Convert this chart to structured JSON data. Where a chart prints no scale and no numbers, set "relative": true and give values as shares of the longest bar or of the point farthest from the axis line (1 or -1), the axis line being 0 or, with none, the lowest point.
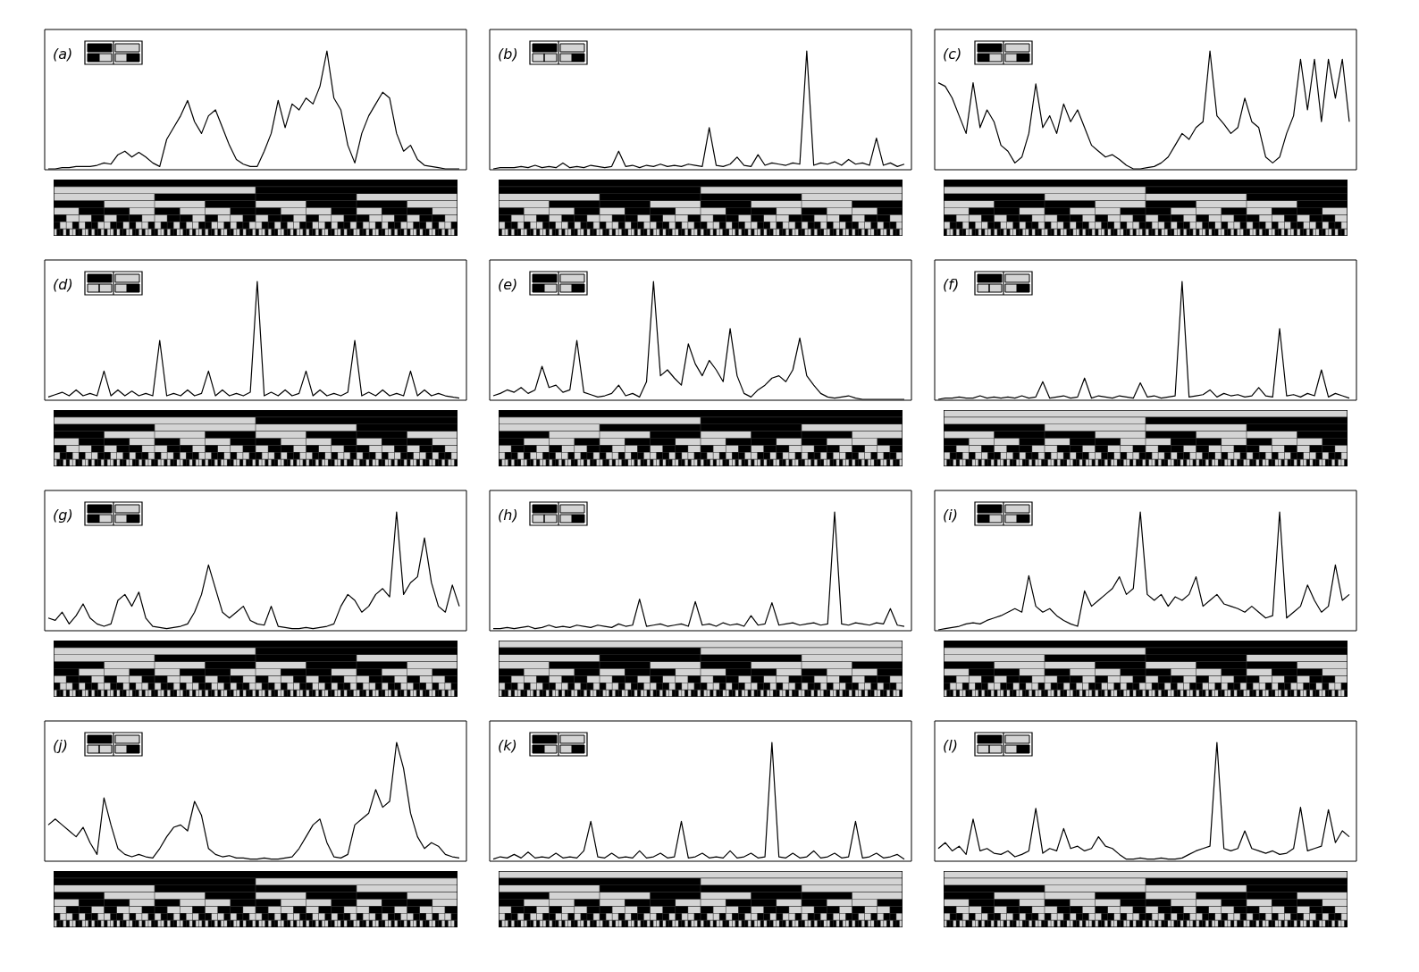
{
  "chart_data": [
    {
      "type": "line",
      "title": "(a)",
      "relative": true,
      "color": "#000000",
      "categories": [
        null,
        null,
        null,
        null,
        null,
        null,
        null,
        null,
        null,
        null,
        null,
        null,
        null,
        null,
        null,
        null,
        null,
        null,
        null,
        null,
        null,
        null,
        null,
        null,
        null,
        null,
        null,
        null,
        null,
        null,
        null,
        null,
        null,
        null,
        null,
        null,
        null,
        null,
        null,
        null,
        null,
        null,
        null,
        null,
        null,
        null,
        null,
        null,
        null,
        null,
        null,
        null,
        null,
        null,
        null,
        null,
        null,
        null,
        null,
        null
      ],
      "values": [
        0,
        0,
        0.01,
        0.01,
        0.02,
        0.02,
        0.02,
        0.03,
        0.05,
        0.04,
        0.12,
        0.15,
        0.1,
        0.14,
        0.1,
        0.05,
        0.02,
        0.25,
        0.35,
        0.45,
        0.58,
        0.4,
        0.3,
        0.45,
        0.5,
        0.35,
        0.2,
        0.08,
        0.04,
        0.02,
        0.02,
        0.15,
        0.3,
        0.58,
        0.35,
        0.55,
        0.5,
        0.6,
        0.55,
        0.7,
        1,
        0.6,
        0.5,
        0.2,
        0.05,
        0.3,
        0.45,
        0.55,
        0.65,
        0.6,
        0.3,
        0.15,
        0.2,
        0.08,
        0.03,
        0.02,
        0.01,
        0,
        0,
        0
      ]
    },
    {
      "type": "line",
      "title": "(b)",
      "relative": true,
      "color": "#000000",
      "categories": [
        null,
        null,
        null,
        null,
        null,
        null,
        null,
        null,
        null,
        null,
        null,
        null,
        null,
        null,
        null,
        null,
        null,
        null,
        null,
        null,
        null,
        null,
        null,
        null,
        null,
        null,
        null,
        null,
        null,
        null,
        null,
        null,
        null,
        null,
        null,
        null,
        null,
        null,
        null,
        null,
        null,
        null,
        null,
        null,
        null,
        null,
        null,
        null,
        null,
        null,
        null,
        null,
        null,
        null,
        null,
        null,
        null,
        null,
        null,
        null
      ],
      "values": [
        0,
        0.01,
        0.01,
        0.01,
        0.02,
        0.01,
        0.03,
        0.01,
        0.02,
        0.01,
        0.05,
        0.01,
        0.02,
        0.01,
        0.03,
        0.02,
        0.01,
        0.02,
        0.15,
        0.02,
        0.03,
        0.01,
        0.03,
        0.02,
        0.04,
        0.02,
        0.03,
        0.02,
        0.04,
        0.03,
        0.02,
        0.35,
        0.03,
        0.02,
        0.04,
        0.1,
        0.03,
        0.02,
        0.12,
        0.03,
        0.05,
        0.04,
        0.03,
        0.05,
        0.04,
        1,
        0.03,
        0.05,
        0.04,
        0.06,
        0.03,
        0.08,
        0.04,
        0.05,
        0.03,
        0.26,
        0.03,
        0.05,
        0.02,
        0.04
      ]
    },
    {
      "type": "line",
      "title": "(c)",
      "relative": true,
      "color": "#000000",
      "categories": [
        null,
        null,
        null,
        null,
        null,
        null,
        null,
        null,
        null,
        null,
        null,
        null,
        null,
        null,
        null,
        null,
        null,
        null,
        null,
        null,
        null,
        null,
        null,
        null,
        null,
        null,
        null,
        null,
        null,
        null,
        null,
        null,
        null,
        null,
        null,
        null,
        null,
        null,
        null,
        null,
        null,
        null,
        null,
        null,
        null,
        null,
        null,
        null,
        null,
        null,
        null,
        null,
        null,
        null,
        null,
        null,
        null,
        null,
        null,
        null
      ],
      "values": [
        0.73,
        0.7,
        0.6,
        0.45,
        0.3,
        0.73,
        0.35,
        0.5,
        0.4,
        0.2,
        0.15,
        0.05,
        0.1,
        0.3,
        0.72,
        0.35,
        0.45,
        0.3,
        0.55,
        0.4,
        0.5,
        0.35,
        0.2,
        0.15,
        0.1,
        0.12,
        0.08,
        0.03,
        0,
        0,
        0.01,
        0.02,
        0.05,
        0.1,
        0.2,
        0.3,
        0.25,
        0.35,
        0.4,
        1,
        0.45,
        0.38,
        0.3,
        0.35,
        0.6,
        0.4,
        0.35,
        0.1,
        0.05,
        0.1,
        0.3,
        0.45,
        0.93,
        0.5,
        0.93,
        0.4,
        0.93,
        0.6,
        0.93,
        0.4
      ]
    },
    {
      "type": "line",
      "title": "(d)",
      "relative": true,
      "color": "#000000",
      "categories": [
        null,
        null,
        null,
        null,
        null,
        null,
        null,
        null,
        null,
        null,
        null,
        null,
        null,
        null,
        null,
        null,
        null,
        null,
        null,
        null,
        null,
        null,
        null,
        null,
        null,
        null,
        null,
        null,
        null,
        null,
        null,
        null,
        null,
        null,
        null,
        null,
        null,
        null,
        null,
        null,
        null,
        null,
        null,
        null,
        null,
        null,
        null,
        null,
        null,
        null,
        null,
        null,
        null,
        null,
        null,
        null,
        null,
        null,
        null,
        null
      ],
      "values": [
        0.02,
        0.04,
        0.06,
        0.03,
        0.08,
        0.03,
        0.05,
        0.03,
        0.24,
        0.03,
        0.08,
        0.03,
        0.07,
        0.03,
        0.05,
        0.03,
        0.5,
        0.03,
        0.05,
        0.03,
        0.08,
        0.03,
        0.05,
        0.24,
        0.03,
        0.08,
        0.03,
        0.05,
        0.03,
        0.06,
        1,
        0.03,
        0.06,
        0.03,
        0.08,
        0.03,
        0.05,
        0.24,
        0.03,
        0.08,
        0.03,
        0.05,
        0.03,
        0.06,
        0.5,
        0.03,
        0.06,
        0.03,
        0.08,
        0.03,
        0.05,
        0.03,
        0.24,
        0.03,
        0.08,
        0.03,
        0.05,
        0.03,
        0.02,
        0.01
      ]
    },
    {
      "type": "line",
      "title": "(e)",
      "relative": true,
      "color": "#000000",
      "categories": [
        null,
        null,
        null,
        null,
        null,
        null,
        null,
        null,
        null,
        null,
        null,
        null,
        null,
        null,
        null,
        null,
        null,
        null,
        null,
        null,
        null,
        null,
        null,
        null,
        null,
        null,
        null,
        null,
        null,
        null,
        null,
        null,
        null,
        null,
        null,
        null,
        null,
        null,
        null,
        null,
        null,
        null,
        null,
        null,
        null,
        null,
        null,
        null,
        null,
        null,
        null,
        null,
        null,
        null,
        null,
        null,
        null,
        null,
        null,
        null
      ],
      "values": [
        0.03,
        0.05,
        0.08,
        0.06,
        0.1,
        0.05,
        0.08,
        0.28,
        0.1,
        0.12,
        0.06,
        0.08,
        0.5,
        0.06,
        0.04,
        0.02,
        0.03,
        0.05,
        0.12,
        0.03,
        0.05,
        0.02,
        0.15,
        1,
        0.2,
        0.25,
        0.18,
        0.12,
        0.47,
        0.3,
        0.2,
        0.33,
        0.25,
        0.15,
        0.6,
        0.2,
        0.05,
        0.02,
        0.08,
        0.12,
        0.18,
        0.2,
        0.15,
        0.25,
        0.52,
        0.2,
        0.12,
        0.05,
        0.02,
        0.01,
        0.02,
        0.03,
        0.01,
        0,
        0,
        0,
        0,
        0,
        0,
        0
      ]
    },
    {
      "type": "line",
      "title": "(f)",
      "relative": true,
      "color": "#000000",
      "categories": [
        null,
        null,
        null,
        null,
        null,
        null,
        null,
        null,
        null,
        null,
        null,
        null,
        null,
        null,
        null,
        null,
        null,
        null,
        null,
        null,
        null,
        null,
        null,
        null,
        null,
        null,
        null,
        null,
        null,
        null,
        null,
        null,
        null,
        null,
        null,
        null,
        null,
        null,
        null,
        null,
        null,
        null,
        null,
        null,
        null,
        null,
        null,
        null,
        null,
        null,
        null,
        null,
        null,
        null,
        null,
        null,
        null,
        null,
        null,
        null
      ],
      "values": [
        0,
        0.01,
        0.01,
        0.02,
        0.01,
        0.01,
        0.03,
        0.01,
        0.02,
        0.01,
        0.02,
        0.01,
        0.03,
        0.01,
        0.02,
        0.15,
        0.01,
        0.02,
        0.03,
        0.01,
        0.02,
        0.18,
        0.01,
        0.03,
        0.02,
        0.01,
        0.03,
        0.02,
        0.01,
        0.14,
        0.02,
        0.03,
        0.01,
        0.02,
        0.03,
        1,
        0.02,
        0.03,
        0.04,
        0.08,
        0.02,
        0.05,
        0.03,
        0.04,
        0.02,
        0.03,
        0.1,
        0.03,
        0.02,
        0.6,
        0.03,
        0.04,
        0.02,
        0.05,
        0.03,
        0.25,
        0.02,
        0.05,
        0.03,
        0.01
      ]
    },
    {
      "type": "line",
      "title": "(g)",
      "relative": true,
      "color": "#000000",
      "categories": [
        null,
        null,
        null,
        null,
        null,
        null,
        null,
        null,
        null,
        null,
        null,
        null,
        null,
        null,
        null,
        null,
        null,
        null,
        null,
        null,
        null,
        null,
        null,
        null,
        null,
        null,
        null,
        null,
        null,
        null,
        null,
        null,
        null,
        null,
        null,
        null,
        null,
        null,
        null,
        null,
        null,
        null,
        null,
        null,
        null,
        null,
        null,
        null,
        null,
        null,
        null,
        null,
        null,
        null,
        null,
        null,
        null,
        null,
        null,
        null
      ],
      "values": [
        0.1,
        0.08,
        0.15,
        0.05,
        0.12,
        0.22,
        0.1,
        0.05,
        0.03,
        0.05,
        0.25,
        0.3,
        0.2,
        0.32,
        0.1,
        0.03,
        0.02,
        0.01,
        0.02,
        0.03,
        0.05,
        0.15,
        0.3,
        0.55,
        0.35,
        0.15,
        0.1,
        0.15,
        0.2,
        0.08,
        0.05,
        0.04,
        0.2,
        0.03,
        0.02,
        0.01,
        0.01,
        0.02,
        0.01,
        0.02,
        0.03,
        0.05,
        0.2,
        0.3,
        0.25,
        0.15,
        0.2,
        0.3,
        0.35,
        0.28,
        1,
        0.3,
        0.4,
        0.45,
        0.78,
        0.4,
        0.2,
        0.15,
        0.38,
        0.2
      ]
    },
    {
      "type": "line",
      "title": "(h)",
      "relative": true,
      "color": "#000000",
      "categories": [
        null,
        null,
        null,
        null,
        null,
        null,
        null,
        null,
        null,
        null,
        null,
        null,
        null,
        null,
        null,
        null,
        null,
        null,
        null,
        null,
        null,
        null,
        null,
        null,
        null,
        null,
        null,
        null,
        null,
        null,
        null,
        null,
        null,
        null,
        null,
        null,
        null,
        null,
        null,
        null,
        null,
        null,
        null,
        null,
        null,
        null,
        null,
        null,
        null,
        null,
        null,
        null,
        null,
        null,
        null,
        null,
        null,
        null,
        null,
        null
      ],
      "values": [
        0.01,
        0.01,
        0.02,
        0.01,
        0.02,
        0.03,
        0.01,
        0.02,
        0.04,
        0.02,
        0.03,
        0.02,
        0.04,
        0.03,
        0.02,
        0.04,
        0.03,
        0.02,
        0.05,
        0.03,
        0.04,
        0.26,
        0.03,
        0.04,
        0.05,
        0.03,
        0.04,
        0.05,
        0.03,
        0.24,
        0.04,
        0.05,
        0.03,
        0.06,
        0.04,
        0.05,
        0.03,
        0.12,
        0.04,
        0.05,
        0.23,
        0.04,
        0.05,
        0.06,
        0.04,
        0.05,
        0.06,
        0.04,
        0.05,
        1,
        0.05,
        0.04,
        0.06,
        0.05,
        0.04,
        0.06,
        0.05,
        0.18,
        0.04,
        0.03
      ]
    },
    {
      "type": "line",
      "title": "(i)",
      "relative": true,
      "color": "#000000",
      "categories": [
        null,
        null,
        null,
        null,
        null,
        null,
        null,
        null,
        null,
        null,
        null,
        null,
        null,
        null,
        null,
        null,
        null,
        null,
        null,
        null,
        null,
        null,
        null,
        null,
        null,
        null,
        null,
        null,
        null,
        null,
        null,
        null,
        null,
        null,
        null,
        null,
        null,
        null,
        null,
        null,
        null,
        null,
        null,
        null,
        null,
        null,
        null,
        null,
        null,
        null,
        null,
        null,
        null,
        null,
        null,
        null,
        null,
        null,
        null,
        null
      ],
      "values": [
        0,
        0.01,
        0.02,
        0.03,
        0.05,
        0.06,
        0.05,
        0.08,
        0.1,
        0.12,
        0.15,
        0.18,
        0.15,
        0.46,
        0.2,
        0.15,
        0.18,
        0.12,
        0.08,
        0.05,
        0.03,
        0.33,
        0.2,
        0.25,
        0.3,
        0.35,
        0.45,
        0.3,
        0.35,
        1,
        0.3,
        0.25,
        0.3,
        0.2,
        0.28,
        0.25,
        0.3,
        0.45,
        0.2,
        0.25,
        0.3,
        0.22,
        0.2,
        0.18,
        0.15,
        0.2,
        0.15,
        0.1,
        0.12,
        1,
        0.1,
        0.15,
        0.2,
        0.38,
        0.25,
        0.15,
        0.2,
        0.55,
        0.25,
        0.3
      ]
    },
    {
      "type": "line",
      "title": "(j)",
      "relative": true,
      "color": "#000000",
      "categories": [
        null,
        null,
        null,
        null,
        null,
        null,
        null,
        null,
        null,
        null,
        null,
        null,
        null,
        null,
        null,
        null,
        null,
        null,
        null,
        null,
        null,
        null,
        null,
        null,
        null,
        null,
        null,
        null,
        null,
        null,
        null,
        null,
        null,
        null,
        null,
        null,
        null,
        null,
        null,
        null,
        null,
        null,
        null,
        null,
        null,
        null,
        null,
        null,
        null,
        null,
        null,
        null,
        null,
        null,
        null,
        null,
        null,
        null,
        null,
        null
      ],
      "values": [
        0.3,
        0.35,
        0.3,
        0.25,
        0.2,
        0.28,
        0.15,
        0.05,
        0.53,
        0.3,
        0.1,
        0.05,
        0.03,
        0.05,
        0.03,
        0.02,
        0.1,
        0.2,
        0.28,
        0.3,
        0.25,
        0.5,
        0.38,
        0.1,
        0.05,
        0.03,
        0.04,
        0.02,
        0.02,
        0.01,
        0.01,
        0.02,
        0.01,
        0.01,
        0.02,
        0.03,
        0.1,
        0.2,
        0.3,
        0.35,
        0.15,
        0.03,
        0.02,
        0.05,
        0.3,
        0.35,
        0.4,
        0.6,
        0.45,
        0.5,
        1,
        0.78,
        0.4,
        0.2,
        0.1,
        0.15,
        0.12,
        0.05,
        0.03,
        0.02
      ]
    },
    {
      "type": "line",
      "title": "(k)",
      "relative": true,
      "color": "#000000",
      "categories": [
        null,
        null,
        null,
        null,
        null,
        null,
        null,
        null,
        null,
        null,
        null,
        null,
        null,
        null,
        null,
        null,
        null,
        null,
        null,
        null,
        null,
        null,
        null,
        null,
        null,
        null,
        null,
        null,
        null,
        null,
        null,
        null,
        null,
        null,
        null,
        null,
        null,
        null,
        null,
        null,
        null,
        null,
        null,
        null,
        null,
        null,
        null,
        null,
        null,
        null,
        null,
        null,
        null,
        null,
        null,
        null,
        null,
        null,
        null,
        null
      ],
      "values": [
        0.01,
        0.03,
        0.02,
        0.05,
        0.02,
        0.07,
        0.02,
        0.03,
        0.02,
        0.06,
        0.02,
        0.03,
        0.02,
        0.08,
        0.33,
        0.03,
        0.02,
        0.06,
        0.02,
        0.03,
        0.02,
        0.08,
        0.02,
        0.03,
        0.06,
        0.02,
        0.03,
        0.33,
        0.02,
        0.03,
        0.06,
        0.02,
        0.03,
        0.02,
        0.08,
        0.02,
        0.03,
        0.06,
        0.02,
        0.03,
        1,
        0.03,
        0.02,
        0.06,
        0.02,
        0.03,
        0.08,
        0.02,
        0.03,
        0.06,
        0.02,
        0.03,
        0.33,
        0.02,
        0.03,
        0.06,
        0.02,
        0.03,
        0.05,
        0.01
      ]
    },
    {
      "type": "line",
      "title": "(l)",
      "relative": true,
      "color": "#000000",
      "categories": [
        null,
        null,
        null,
        null,
        null,
        null,
        null,
        null,
        null,
        null,
        null,
        null,
        null,
        null,
        null,
        null,
        null,
        null,
        null,
        null,
        null,
        null,
        null,
        null,
        null,
        null,
        null,
        null,
        null,
        null,
        null,
        null,
        null,
        null,
        null,
        null,
        null,
        null,
        null,
        null,
        null,
        null,
        null,
        null,
        null,
        null,
        null,
        null,
        null,
        null,
        null,
        null,
        null,
        null,
        null,
        null,
        null,
        null,
        null,
        null
      ],
      "values": [
        0.1,
        0.15,
        0.08,
        0.12,
        0.05,
        0.35,
        0.08,
        0.1,
        0.06,
        0.05,
        0.08,
        0.03,
        0.05,
        0.08,
        0.44,
        0.06,
        0.1,
        0.08,
        0.27,
        0.1,
        0.12,
        0.08,
        0.1,
        0.2,
        0.12,
        0.1,
        0.05,
        0.01,
        0.01,
        0.02,
        0.01,
        0.01,
        0.02,
        0.01,
        0.01,
        0.02,
        0.05,
        0.08,
        0.1,
        0.12,
        1,
        0.1,
        0.08,
        0.1,
        0.25,
        0.1,
        0.08,
        0.06,
        0.08,
        0.05,
        0.06,
        0.1,
        0.45,
        0.08,
        0.1,
        0.12,
        0.43,
        0.15,
        0.25,
        0.2
      ]
    }
  ]
}
